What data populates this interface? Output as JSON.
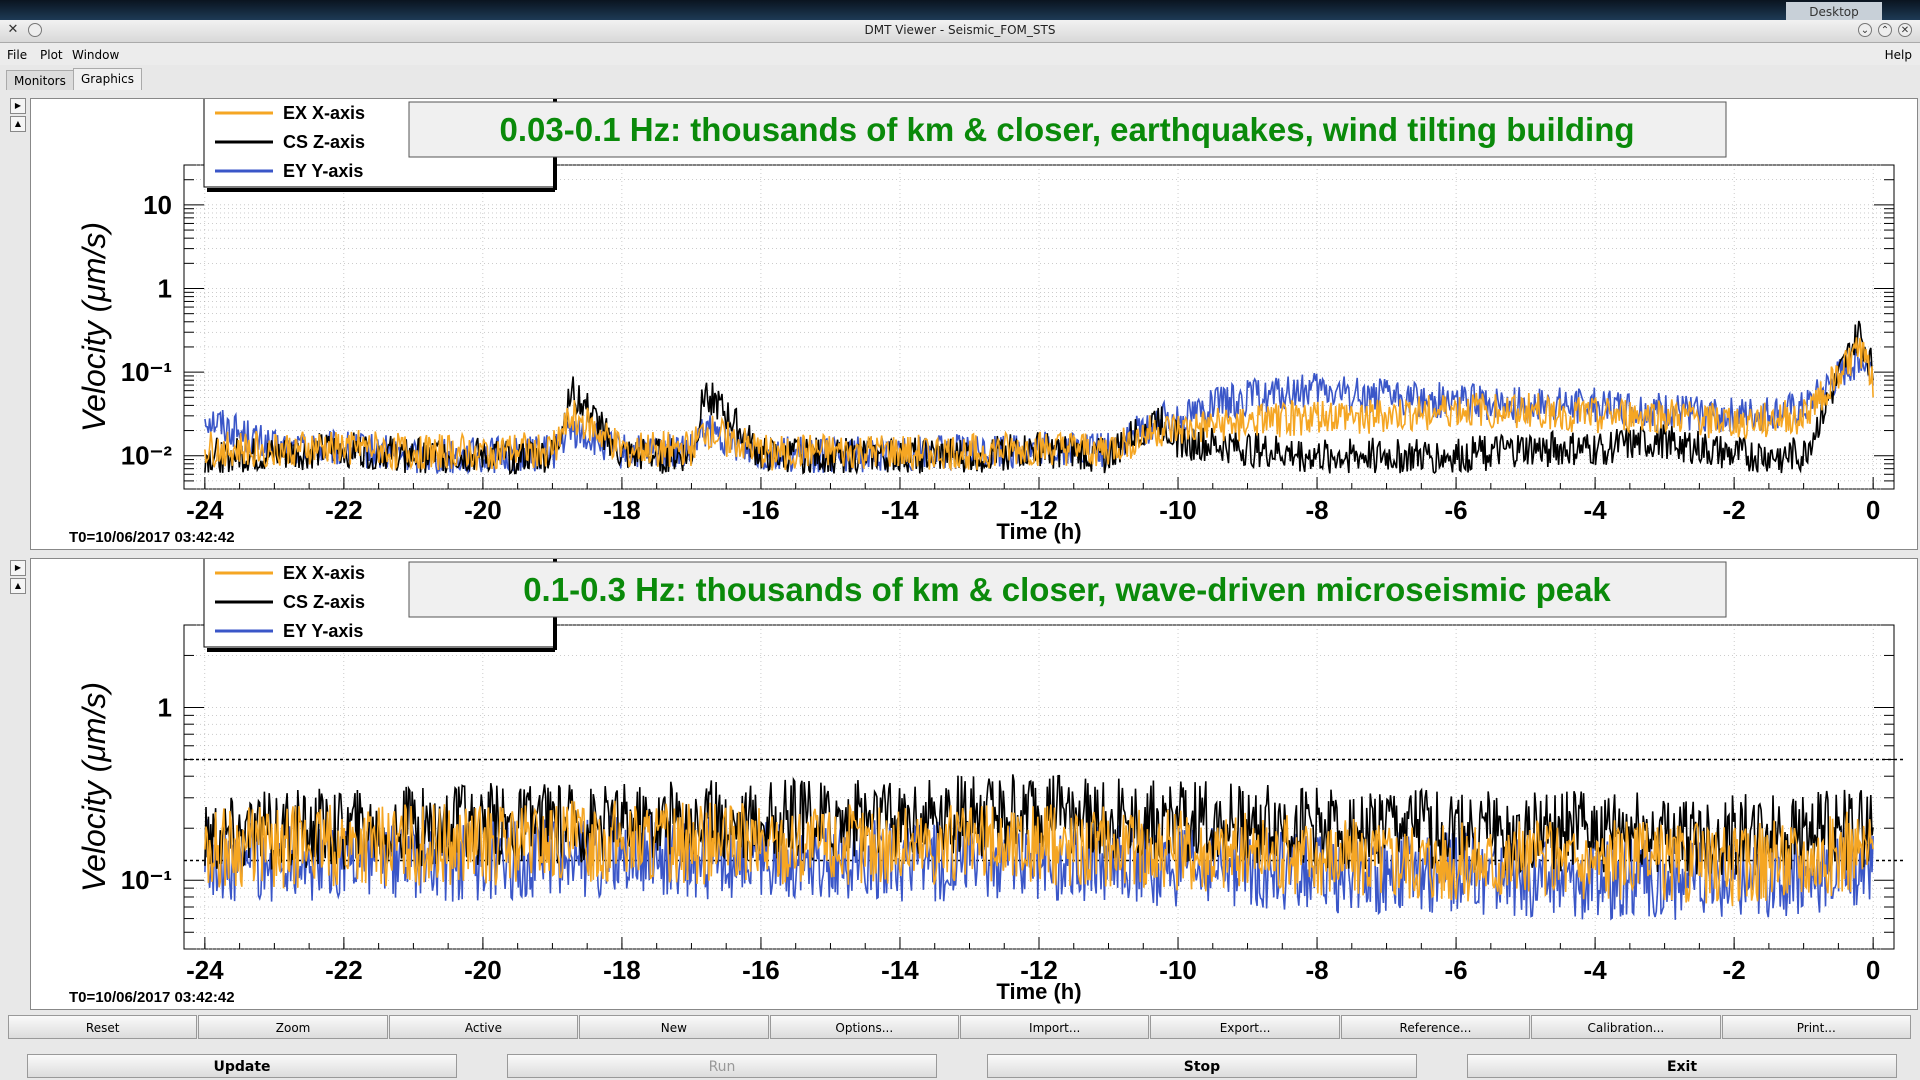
{
  "window": {
    "title": "DMT Viewer - Seismic_FOM_STS",
    "desktop_label": "Desktop"
  },
  "menu": {
    "file": "File",
    "plot": "Plot",
    "window": "Window",
    "help": "Help"
  },
  "tabs": [
    {
      "label": "Monitors"
    },
    {
      "label": "Graphics"
    }
  ],
  "colors": {
    "ex": "#f5a623",
    "cs": "#000000",
    "ey": "#3a56c8",
    "title_text": "#0a8a0a"
  },
  "charts": [
    {
      "title": "0.03-0.1 Hz: thousands of km & closer, earthquakes, wind tilting building",
      "ylabel": "Velocity  (μm/s)",
      "xlabel": "Time (h)",
      "t0": "T0=10/06/2017 03:42:42",
      "legend": [
        "EX X-axis",
        "CS Z-axis",
        "EY Y-axis"
      ],
      "y_ticks": [
        "10",
        "1",
        "10⁻¹",
        "10⁻²"
      ],
      "x_ticks": [
        "-24",
        "-22",
        "-20",
        "-18",
        "-16",
        "-14",
        "-12",
        "-10",
        "-8",
        "-6",
        "-4",
        "-2",
        "0"
      ]
    },
    {
      "title": "0.1-0.3 Hz: thousands of km & closer, wave-driven microseismic peak",
      "ylabel": "Velocity  (μm/s)",
      "xlabel": "Time (h)",
      "t0": "T0=10/06/2017 03:42:42",
      "legend": [
        "EX X-axis",
        "CS Z-axis",
        "EY Y-axis"
      ],
      "y_ticks": [
        "1",
        "10⁻¹"
      ],
      "x_ticks": [
        "-24",
        "-22",
        "-20",
        "-18",
        "-16",
        "-14",
        "-12",
        "-10",
        "-8",
        "-6",
        "-4",
        "-2",
        "0"
      ]
    }
  ],
  "chart_data": [
    {
      "type": "line",
      "title": "0.03-0.1 Hz: thousands of km & closer, earthquakes, wind tilting building",
      "xlabel": "Time (h)",
      "ylabel": "Velocity (μm/s)",
      "xlim": [
        -24.3,
        0.3
      ],
      "ylim": [
        0.004,
        30
      ],
      "yscale": "log",
      "grid": true,
      "legend_position": "top-left",
      "x": [
        -24,
        -23,
        -22,
        -21,
        -20,
        -19,
        -18.7,
        -18,
        -17,
        -16.8,
        -16,
        -15,
        -14,
        -13,
        -12,
        -11,
        -10.3,
        -10,
        -9,
        -8,
        -7,
        -6,
        -5,
        -4,
        -3,
        -2,
        -1,
        -0.2,
        0
      ],
      "series": [
        {
          "name": "EX X-axis",
          "values": [
            0.012,
            0.012,
            0.013,
            0.011,
            0.011,
            0.012,
            0.03,
            0.012,
            0.012,
            0.02,
            0.011,
            0.011,
            0.011,
            0.011,
            0.012,
            0.012,
            0.02,
            0.02,
            0.025,
            0.03,
            0.03,
            0.035,
            0.035,
            0.03,
            0.03,
            0.025,
            0.03,
            0.2,
            0.08
          ]
        },
        {
          "name": "CS Z-axis",
          "values": [
            0.01,
            0.01,
            0.012,
            0.01,
            0.01,
            0.01,
            0.06,
            0.01,
            0.01,
            0.06,
            0.01,
            0.01,
            0.01,
            0.01,
            0.012,
            0.01,
            0.03,
            0.015,
            0.012,
            0.01,
            0.01,
            0.01,
            0.012,
            0.012,
            0.015,
            0.01,
            0.01,
            0.3,
            0.1
          ]
        },
        {
          "name": "EY Y-axis",
          "values": [
            0.03,
            0.012,
            0.012,
            0.01,
            0.01,
            0.011,
            0.02,
            0.011,
            0.011,
            0.02,
            0.011,
            0.01,
            0.011,
            0.011,
            0.012,
            0.012,
            0.025,
            0.03,
            0.05,
            0.06,
            0.05,
            0.045,
            0.04,
            0.04,
            0.035,
            0.03,
            0.035,
            0.15,
            0.1
          ]
        }
      ]
    },
    {
      "type": "line",
      "title": "0.1-0.3 Hz: thousands of km & closer, wave-driven microseismic peak",
      "xlabel": "Time (h)",
      "ylabel": "Velocity (μm/s)",
      "xlim": [
        -24.3,
        0.3
      ],
      "ylim": [
        0.04,
        3
      ],
      "yscale": "log",
      "grid": true,
      "legend_position": "top-left",
      "reference_lines": [
        0.5,
        0.13
      ],
      "x": [
        -24,
        -22,
        -20,
        -18,
        -16,
        -14,
        -12,
        -10,
        -8,
        -6,
        -4,
        -2,
        0
      ],
      "series": [
        {
          "name": "EX X-axis",
          "values": [
            0.15,
            0.16,
            0.16,
            0.17,
            0.16,
            0.16,
            0.16,
            0.15,
            0.14,
            0.13,
            0.13,
            0.12,
            0.15
          ]
        },
        {
          "name": "CS Z-axis",
          "values": [
            0.18,
            0.2,
            0.21,
            0.22,
            0.22,
            0.23,
            0.24,
            0.22,
            0.2,
            0.19,
            0.19,
            0.18,
            0.2
          ]
        },
        {
          "name": "EY Y-axis",
          "values": [
            0.13,
            0.13,
            0.13,
            0.14,
            0.13,
            0.13,
            0.13,
            0.12,
            0.11,
            0.11,
            0.1,
            0.1,
            0.12
          ]
        }
      ]
    }
  ],
  "toolbar": [
    "Reset",
    "Zoom",
    "Active",
    "New",
    "Options...",
    "Import...",
    "Export...",
    "Reference...",
    "Calibration...",
    "Print..."
  ],
  "actions": {
    "update": "Update",
    "run": "Run",
    "stop": "Stop",
    "exit": "Exit"
  }
}
